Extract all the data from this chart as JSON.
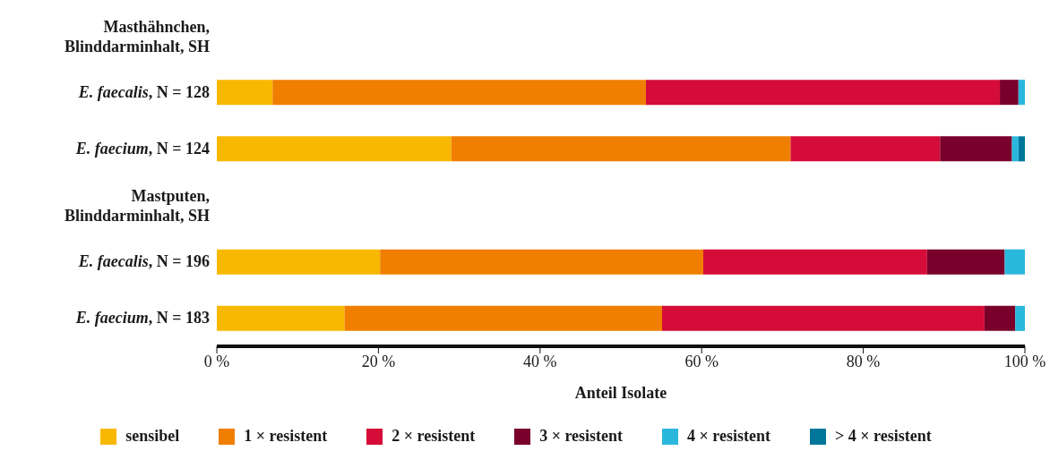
{
  "chart_data": {
    "type": "bar",
    "orientation": "horizontal",
    "stacked": true,
    "categories": [
      "Masthähnchen, Blinddarminhalt, SH",
      "E. faecalis, N = 128",
      "E. faecium, N = 124",
      "Mastputen, Blinddarminhalt, SH",
      "E. faecalis, N = 196",
      "E. faecium, N = 183"
    ],
    "series": [
      {
        "name": "sensibel",
        "color": "#f9b800",
        "values": [
          null,
          6.9,
          29.0,
          null,
          20.2,
          15.8
        ]
      },
      {
        "name": "1 × resistent",
        "color": "#f07f00",
        "values": [
          null,
          46.2,
          42.0,
          null,
          40.0,
          39.3
        ]
      },
      {
        "name": "2 × resistent",
        "color": "#d50c38",
        "values": [
          null,
          43.8,
          18.5,
          null,
          27.7,
          39.9
        ]
      },
      {
        "name": "3 × resistent",
        "color": "#7a002c",
        "values": [
          null,
          2.3,
          8.9,
          null,
          9.6,
          3.8
        ]
      },
      {
        "name": "4 × resistent",
        "color": "#2ab7dc",
        "values": [
          null,
          0.8,
          0.8,
          null,
          2.5,
          1.2
        ]
      },
      {
        "name": "> 4 × resistent",
        "color": "#00779a",
        "values": [
          null,
          0,
          0.8,
          null,
          0,
          0
        ]
      }
    ],
    "xlim": [
      0,
      100
    ],
    "xticks": [
      {
        "value": 0,
        "label": "0 %"
      },
      {
        "value": 20,
        "label": "20 %"
      },
      {
        "value": 40,
        "label": "40 %"
      },
      {
        "value": 60,
        "label": "60 %"
      },
      {
        "value": 80,
        "label": "80 %"
      },
      {
        "value": 100,
        "label": "100 %"
      }
    ],
    "xlabel": "Anteil Isolate",
    "grid": false,
    "legend": "bottom"
  }
}
